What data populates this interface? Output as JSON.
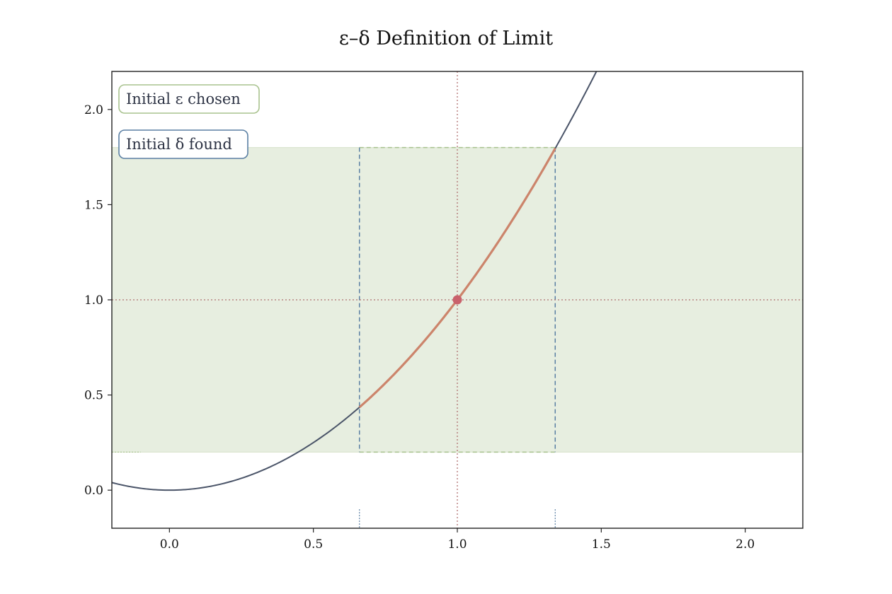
{
  "chart_data": {
    "type": "line",
    "title": "ε–δ Definition of Limit",
    "xlabel": "",
    "ylabel": "",
    "xlim": [
      -0.2,
      2.2
    ],
    "ylim": [
      -0.2,
      2.2
    ],
    "x_ticks": [
      0.0,
      0.5,
      1.0,
      1.5,
      2.0
    ],
    "x_tick_labels": [
      "0.0",
      "0.5",
      "1.0",
      "1.5",
      "2.0"
    ],
    "y_ticks": [
      0.0,
      0.5,
      1.0,
      1.5,
      2.0
    ],
    "y_tick_labels": [
      "0.0",
      "0.5",
      "1.0",
      "1.5",
      "2.0"
    ],
    "grid": false,
    "function": "x^2",
    "curve": {
      "x_start": -0.2,
      "x_end": 2.2,
      "color": "#4a5468"
    },
    "limit_point": {
      "x": 1.0,
      "y": 1.0,
      "color": "#c9616b"
    },
    "epsilon": 0.8,
    "epsilon_band": {
      "y_low": 0.2,
      "y_high": 1.8,
      "color": "#a8c28e"
    },
    "delta": 0.34,
    "delta_interval": {
      "x_low": 0.66,
      "x_high": 1.34,
      "color": "#5a7fa3"
    },
    "highlight_segment": {
      "x_start": 0.66,
      "x_end": 1.34,
      "color": "#cc846b"
    },
    "annotations": [
      {
        "text": "Initial ε chosen",
        "border": "#a8c28e"
      },
      {
        "text": "Initial δ found",
        "border": "#5a7fa3"
      }
    ],
    "guide_color": "#b07070"
  }
}
